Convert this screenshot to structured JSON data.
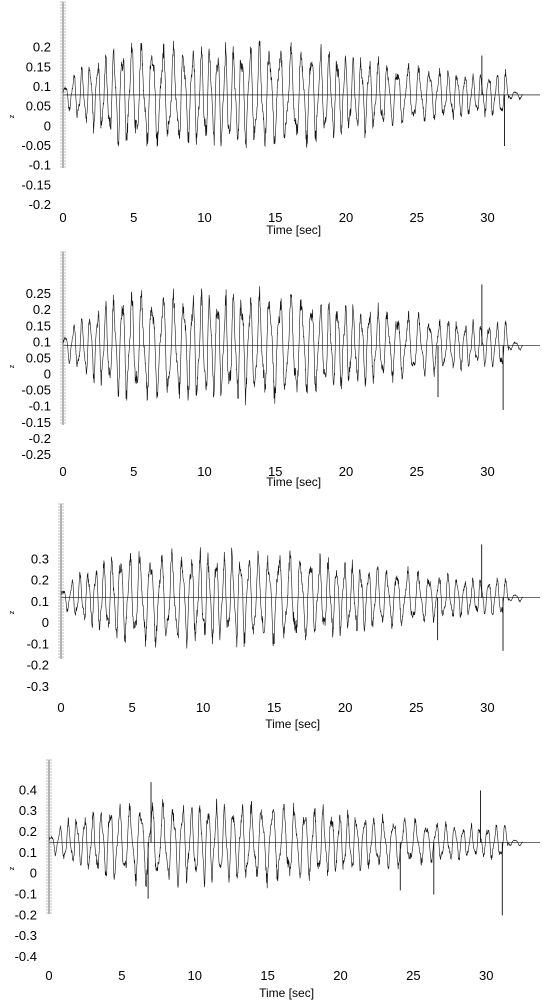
{
  "chart_data": [
    {
      "type": "line",
      "xlabel": "Time [sec]",
      "ylabel": "z",
      "xlim": [
        0,
        33
      ],
      "ylim": [
        -0.2,
        0.25
      ],
      "xticks": [
        "0",
        "5",
        "10",
        "15",
        "20",
        "25",
        "30"
      ],
      "yticks": [
        "-0.2",
        "-0.15",
        "-0.1",
        "-0.05",
        "0",
        "0.05",
        "0.1",
        "0.15",
        "0.2"
      ],
      "baseline": 0.08,
      "amplitude": 0.11,
      "spikes": [
        {
          "x": 31.2,
          "y": -0.05
        },
        {
          "x": 29.6,
          "y": 0.18
        }
      ],
      "end_time": 32.5
    },
    {
      "type": "line",
      "xlabel": "Time [sec]",
      "ylabel": "z",
      "xlim": [
        0,
        33
      ],
      "ylim": [
        -0.25,
        0.3
      ],
      "xticks": [
        "0",
        "5",
        "10",
        "15",
        "20",
        "25",
        "30"
      ],
      "yticks": [
        "-0.25",
        "-0.2",
        "-0.15",
        "-0.1",
        "-0.05",
        "0",
        "0.05",
        "0.1",
        "0.15",
        "0.2",
        "0.25"
      ],
      "baseline": 0.09,
      "amplitude": 0.14,
      "spikes": [
        {
          "x": 29.6,
          "y": 0.28
        },
        {
          "x": 31.1,
          "y": -0.11
        },
        {
          "x": 26.5,
          "y": -0.07
        }
      ],
      "end_time": 32.5
    },
    {
      "type": "line",
      "xlabel": "Time [sec]",
      "ylabel": "z",
      "xlim": [
        0,
        33
      ],
      "ylim": [
        -0.3,
        0.4
      ],
      "xticks": [
        "0",
        "5",
        "10",
        "15",
        "20",
        "25",
        "30"
      ],
      "yticks": [
        "-0.3",
        "-0.2",
        "-0.1",
        "0",
        "0.1",
        "0.2",
        "0.3"
      ],
      "baseline": 0.12,
      "amplitude": 0.18,
      "spikes": [
        {
          "x": 29.6,
          "y": 0.37
        },
        {
          "x": 31.1,
          "y": -0.13
        },
        {
          "x": 26.5,
          "y": -0.08
        }
      ],
      "end_time": 32.5
    },
    {
      "type": "line",
      "xlabel": "Time [sec]",
      "ylabel": "z",
      "xlim": [
        0,
        33
      ],
      "ylim": [
        -0.4,
        0.45
      ],
      "xticks": [
        "0",
        "5",
        "10",
        "15",
        "20",
        "25",
        "30"
      ],
      "yticks": [
        "-0.4",
        "-0.3",
        "-0.2",
        "-0.1",
        "0",
        "0.1",
        "0.2",
        "0.3",
        "0.4"
      ],
      "baseline": 0.15,
      "amplitude": 0.16,
      "spikes": [
        {
          "x": 7.0,
          "y": 0.44
        },
        {
          "x": 6.8,
          "y": -0.12
        },
        {
          "x": 29.6,
          "y": 0.4
        },
        {
          "x": 31.1,
          "y": -0.2
        },
        {
          "x": 26.4,
          "y": -0.1
        },
        {
          "x": 24.1,
          "y": -0.08
        }
      ],
      "end_time": 32.5
    }
  ]
}
